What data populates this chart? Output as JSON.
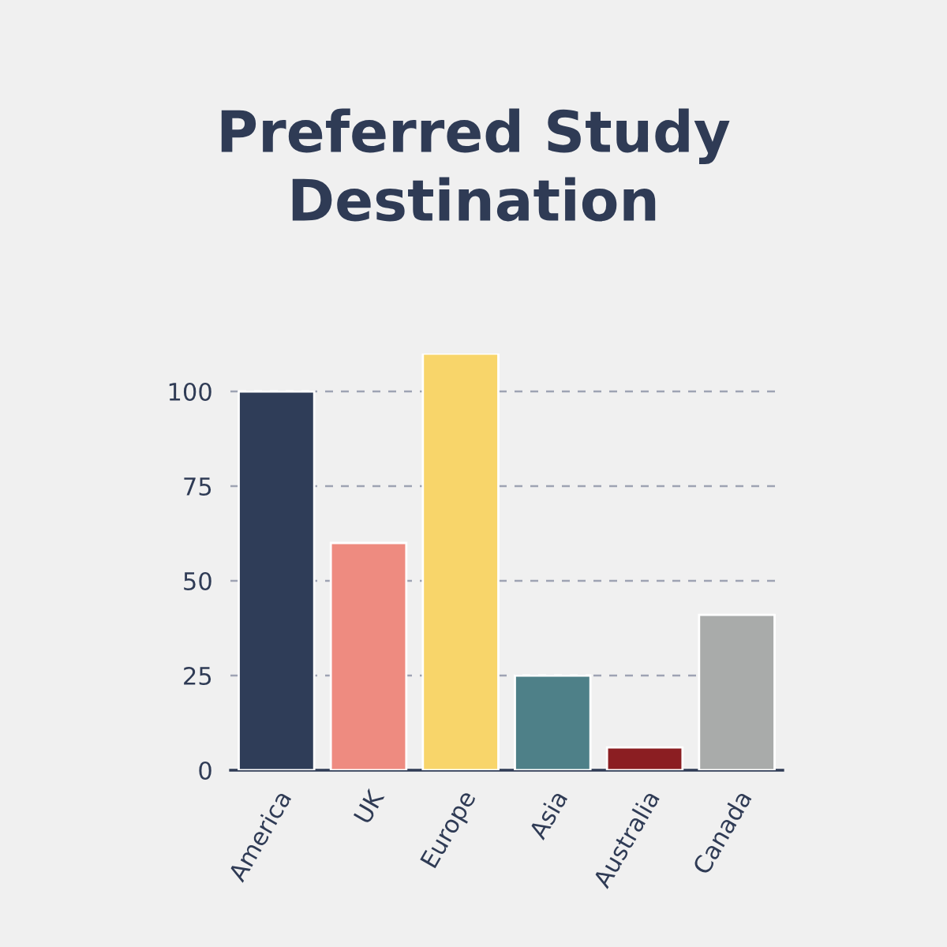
{
  "chart_data": {
    "type": "bar",
    "title": "Preferred Study\nDestination",
    "categories": [
      "America",
      "UK",
      "Europe",
      "Asia",
      "Australia",
      "Canada"
    ],
    "values": [
      100,
      60,
      110,
      25,
      6,
      41
    ],
    "colors": [
      "#2f3d58",
      "#ee8b80",
      "#f8d56a",
      "#4e8088",
      "#8b1e22",
      "#a9abaa"
    ],
    "ylim": [
      0,
      110
    ],
    "yticks": [
      0,
      25,
      50,
      75,
      100
    ],
    "grid": "y"
  }
}
